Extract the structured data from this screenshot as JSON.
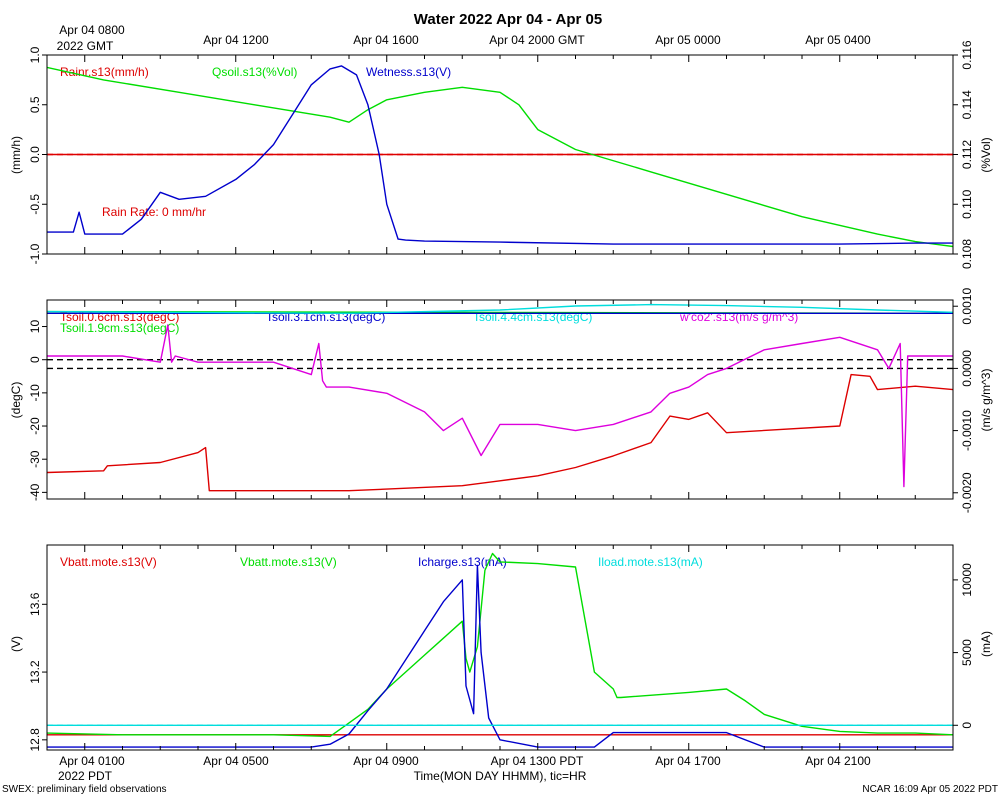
{
  "chart_data": {
    "type": "line",
    "title": "Water 2022 Apr 04 - Apr 05",
    "top_axis_labels": [
      "Apr 04 0800",
      "Apr 04 1200",
      "Apr 04 1600",
      "Apr 04 2000 GMT",
      "Apr 05 0000",
      "Apr 05 0400"
    ],
    "top_axis_sublabel": "2022 GMT",
    "bottom_axis_labels": [
      "Apr 04 0100",
      "Apr 04 0500",
      "Apr 04 0900",
      "Apr 04 1300 PDT",
      "Apr 04 1700",
      "Apr 04 2100"
    ],
    "bottom_axis_sublabel": "2022 PDT",
    "xlabel": "Time(MON DAY HHMM), tic=HR",
    "footer_left": "SWEX: preliminary field observations",
    "footer_right": "NCAR 16:09 Apr 05 2022 PDT",
    "x_units": "hours since Apr 04 0000 PDT",
    "xlim": [
      0.0,
      24.0
    ],
    "panels": [
      {
        "ylabel_left": "(mm/h)",
        "ylabel_right": "(%Vol)",
        "ylim_left": [
          -1.0,
          1.0
        ],
        "ylim_right": [
          0.108,
          0.116
        ],
        "yticks_left": [
          "-1.0",
          "-0.5",
          "0.0",
          "0.5",
          "1.0"
        ],
        "yticks_left_values": [
          -1.0,
          -0.5,
          0.0,
          0.5,
          1.0
        ],
        "yticks_right": [
          "0.108",
          "0.110",
          "0.112",
          "0.114",
          "0.116"
        ],
        "yticks_right_values": [
          0.108,
          0.11,
          0.112,
          0.114,
          0.116
        ],
        "reference_lines": [
          {
            "axis": "left",
            "value": 0.0,
            "color": "#ff0000",
            "dash": true
          }
        ],
        "annotation": {
          "text": "Rain Rate: 0 mm/hr",
          "color": "#dd0000"
        },
        "series": [
          {
            "name": "Rainr.s13(mm/h)",
            "color": "#dd0000",
            "axis": "left",
            "x": [
              0.0,
              24.0
            ],
            "y": [
              0.0,
              0.0
            ]
          },
          {
            "name": "Qsoil.s13(%Vol)",
            "color": "#00dd00",
            "axis": "right",
            "x": [
              0.0,
              1.5,
              3.5,
              5.5,
              7.5,
              8.0,
              8.5,
              9.0,
              10.0,
              11.0,
              12.0,
              12.5,
              13.0,
              14.0,
              16.0,
              18.0,
              20.0,
              22.0,
              23.0,
              23.5,
              24.0
            ],
            "y": [
              0.1155,
              0.115,
              0.1145,
              0.114,
              0.1135,
              0.1133,
              0.1138,
              0.1142,
              0.1145,
              0.1147,
              0.1145,
              0.114,
              0.113,
              0.1122,
              0.1113,
              0.1104,
              0.1095,
              0.1088,
              0.1085,
              0.1084,
              0.1083
            ]
          },
          {
            "name": "Wetness.s13(V)",
            "color": "#0000cc",
            "axis": "left",
            "x": [
              0.0,
              0.7,
              0.85,
              1.0,
              2.0,
              2.5,
              3.0,
              3.5,
              4.2,
              5.0,
              5.5,
              6.0,
              6.5,
              7.0,
              7.5,
              7.8,
              8.2,
              8.5,
              8.8,
              9.0,
              9.3,
              9.5,
              10.0,
              12.0,
              15.0,
              18.0,
              21.0,
              23.0,
              24.0
            ],
            "y": [
              -0.78,
              -0.78,
              -0.58,
              -0.8,
              -0.8,
              -0.65,
              -0.38,
              -0.45,
              -0.42,
              -0.25,
              -0.1,
              0.1,
              0.4,
              0.7,
              0.86,
              0.89,
              0.8,
              0.5,
              0.0,
              -0.5,
              -0.85,
              -0.86,
              -0.87,
              -0.88,
              -0.9,
              -0.9,
              -0.9,
              -0.89,
              -0.89
            ]
          }
        ]
      },
      {
        "ylabel_left": "(degC)",
        "ylabel_right": "(m/s g/m^3)",
        "ylim_left": [
          -42.0,
          18.0
        ],
        "ylim_right": [
          -0.0021,
          0.0011
        ],
        "yticks_left": [
          "-40",
          "-30",
          "-20",
          "-10",
          "0",
          "10"
        ],
        "yticks_left_values": [
          -40,
          -30,
          -20,
          -10,
          0,
          10
        ],
        "yticks_right": [
          "-0.0020",
          "-0.0010",
          "0.0000",
          "0.0010"
        ],
        "yticks_right_values": [
          -0.002,
          -0.001,
          0.0,
          0.001
        ],
        "reference_lines": [
          {
            "axis": "left",
            "value": 0.0,
            "color": "#000000",
            "dash": true
          },
          {
            "axis": "right",
            "value": 0.0,
            "color": "#000000",
            "dash": true
          }
        ],
        "series": [
          {
            "name": "Tsoil.0.6cm.s13(degC)",
            "color": "#dd0000",
            "axis": "left",
            "x": [
              0.0,
              1.5,
              1.6,
              3.0,
              4.0,
              4.2,
              4.3,
              6.0,
              8.0,
              9.0,
              11.0,
              12.0,
              13.0,
              14.0,
              15.0,
              16.0,
              16.5,
              17.0,
              17.5,
              18.0,
              21.0,
              21.3,
              21.8,
              22.0,
              23.0,
              24.0
            ],
            "y": [
              -34.0,
              -33.5,
              -32.0,
              -31.0,
              -28.0,
              -26.5,
              -39.5,
              -39.5,
              -39.5,
              -39.0,
              -38.0,
              -36.5,
              -35.0,
              -32.5,
              -29.0,
              -25.0,
              -17.0,
              -18.0,
              -16.0,
              -22.0,
              -20.0,
              -4.5,
              -5.0,
              -9.0,
              -8.0,
              -9.0
            ]
          },
          {
            "name": "Tsoil.1.9cm.s13(degC)",
            "color": "#00dd00",
            "axis": "left",
            "x": [
              0.0,
              24.0
            ],
            "y": [
              14.5,
              14.0
            ]
          },
          {
            "name": "Tsoil.3.1cm.s13(degC)",
            "color": "#0000cc",
            "axis": "left",
            "x": [
              0.0,
              24.0
            ],
            "y": [
              14.0,
              14.0
            ]
          },
          {
            "name": "Tsoil.4.4cm.s13(degC)",
            "color": "#00dddd",
            "axis": "left",
            "x": [
              0.0,
              4.0,
              8.0,
              12.0,
              14.0,
              16.0,
              18.0,
              20.0,
              22.0,
              24.0
            ],
            "y": [
              14.5,
              14.2,
              14.0,
              15.0,
              16.2,
              16.6,
              16.3,
              15.8,
              15.0,
              14.3
            ]
          },
          {
            "name": "w'co2'.s13(m/s g/m^3)",
            "color": "#dd00dd",
            "axis": "right",
            "x": [
              0.0,
              1.0,
              2.0,
              3.0,
              3.2,
              3.3,
              3.4,
              4.0,
              5.0,
              6.0,
              7.0,
              7.2,
              7.3,
              7.4,
              8.0,
              9.0,
              10.0,
              10.5,
              11.0,
              11.5,
              12.0,
              13.0,
              14.0,
              15.0,
              16.0,
              16.5,
              17.0,
              17.5,
              18.0,
              19.0,
              20.0,
              21.0,
              22.0,
              22.3,
              22.6,
              22.7,
              22.8,
              23.0,
              24.0
            ],
            "y": [
              0.0002,
              0.0002,
              0.0002,
              0.0001,
              0.0007,
              0.0001,
              0.0002,
              0.0001,
              0.0001,
              0.0001,
              -0.0001,
              0.0004,
              -0.0002,
              -0.0003,
              -0.0003,
              -0.0004,
              -0.0007,
              -0.001,
              -0.0008,
              -0.0014,
              -0.0009,
              -0.0009,
              -0.001,
              -0.0009,
              -0.0007,
              -0.0004,
              -0.0003,
              -0.0001,
              0.0,
              0.0003,
              0.0004,
              0.0005,
              0.0003,
              0.0,
              0.0004,
              -0.0019,
              0.0002,
              0.0002,
              0.0002
            ]
          }
        ]
      },
      {
        "ylabel_left": "(V)",
        "ylabel_right": "(mA)",
        "ylim_left": [
          12.74,
          13.95
        ],
        "ylim_right": [
          -1700.0,
          12400.0
        ],
        "yticks_left": [
          "12.8",
          "13.2",
          "13.6"
        ],
        "yticks_left_values": [
          12.8,
          13.2,
          13.6
        ],
        "yticks_right": [
          "0",
          "5000",
          "10000"
        ],
        "yticks_right_values": [
          0,
          5000,
          10000
        ],
        "reference_lines": [
          {
            "axis": "right",
            "value": 0.0,
            "color": "#00dddd",
            "dash": true
          }
        ],
        "series": [
          {
            "name": "Vbatt.mote.s13(V)",
            "color": "#dd0000",
            "axis": "left",
            "x": [
              0.0,
              24.0
            ],
            "y": [
              12.83,
              12.83
            ]
          },
          {
            "name": "Vbatt.mote.s13(V)",
            "color": "#00dd00",
            "axis": "left",
            "x": [
              0.0,
              2.0,
              4.0,
              6.0,
              7.5,
              8.0,
              8.5,
              9.0,
              9.5,
              10.0,
              10.5,
              11.0,
              11.1,
              11.2,
              11.4,
              11.6,
              11.8,
              12.0,
              13.0,
              14.0,
              14.5,
              15.0,
              15.1,
              15.2,
              17.0,
              18.0,
              18.5,
              19.0,
              20.0,
              21.0,
              22.0,
              23.0,
              24.0
            ],
            "y": [
              12.84,
              12.83,
              12.83,
              12.83,
              12.82,
              12.9,
              12.98,
              13.1,
              13.2,
              13.3,
              13.4,
              13.5,
              13.28,
              13.2,
              13.35,
              13.8,
              13.9,
              13.85,
              13.84,
              13.82,
              13.2,
              13.1,
              13.05,
              13.05,
              13.08,
              13.1,
              13.03,
              12.95,
              12.88,
              12.85,
              12.84,
              12.84,
              12.83
            ]
          },
          {
            "name": "Icharge.s13(mA)",
            "color": "#0000cc",
            "axis": "right",
            "x": [
              0.0,
              2.0,
              4.0,
              6.0,
              7.0,
              7.5,
              8.0,
              8.5,
              9.0,
              9.5,
              10.0,
              10.5,
              11.0,
              11.1,
              11.3,
              11.4,
              11.5,
              11.7,
              11.8,
              12.0,
              13.0,
              14.0,
              14.5,
              15.0,
              16.0,
              18.0,
              19.0,
              20.0,
              22.0,
              24.0
            ],
            "y": [
              -1500,
              -1500,
              -1500,
              -1500,
              -1500,
              -1300,
              -600,
              1000,
              2500,
              4500,
              6500,
              8500,
              10000,
              2700,
              800,
              11000,
              5000,
              500,
              0,
              -1000,
              -1500,
              -1500,
              -1500,
              -500,
              -500,
              -500,
              -1500,
              -1500,
              -1500,
              -1500
            ]
          },
          {
            "name": "Iload.mote.s13(mA)",
            "color": "#00dddd",
            "axis": "right",
            "x": [
              0.0,
              24.0
            ],
            "y": [
              0.0,
              0.0
            ]
          }
        ]
      }
    ]
  }
}
